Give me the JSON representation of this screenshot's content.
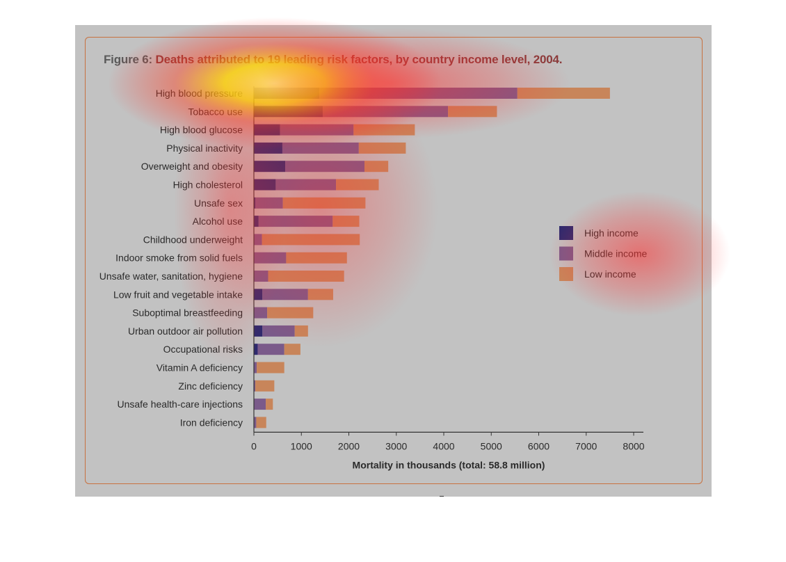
{
  "figure": {
    "number": "Figure 6:",
    "title": "Deaths attributed to 19 leading risk factors, by country income level, 2004."
  },
  "colors": {
    "background": "#c2c2c2",
    "frame": "#c8713f",
    "high_income": "#2e2a6e",
    "middle_income": "#7a5a8a",
    "low_income": "#c8855a"
  },
  "chart_data": {
    "type": "bar",
    "orientation": "horizontal",
    "stacked": true,
    "categories": [
      "High blood pressure",
      "Tobacco use",
      "High blood glucose",
      "Physical inactivity",
      "Overweight and obesity",
      "High cholesterol",
      "Unsafe sex",
      "Alcohol use",
      "Childhood underweight",
      "Indoor smoke from solid fuels",
      "Unsafe water, sanitation, hygiene",
      "Low fruit and vegetable intake",
      "Suboptimal breastfeeding",
      "Urban outdoor air pollution",
      "Occupational risks",
      "Vitamin A deficiency",
      "Zinc deficiency",
      "Unsafe health-care injections",
      "Iron deficiency"
    ],
    "series": [
      {
        "name": "High income",
        "values": [
          1380,
          1450,
          550,
          600,
          660,
          460,
          30,
          100,
          0,
          0,
          0,
          180,
          0,
          180,
          80,
          0,
          0,
          0,
          0
        ]
      },
      {
        "name": "Middle income",
        "values": [
          4170,
          2640,
          1550,
          1610,
          1670,
          1270,
          580,
          1560,
          170,
          680,
          300,
          960,
          280,
          680,
          560,
          60,
          30,
          250,
          50
        ]
      },
      {
        "name": "Low income",
        "values": [
          1950,
          1030,
          1290,
          990,
          500,
          900,
          1740,
          560,
          2060,
          1280,
          1600,
          530,
          970,
          280,
          340,
          580,
          400,
          150,
          210
        ]
      }
    ],
    "xlabel": "Mortality in thousands (total: 58.8 million)",
    "xlim": [
      0,
      8000
    ],
    "xticks": [
      "0",
      "1000",
      "2000",
      "3000",
      "4000",
      "5000",
      "6000",
      "7000",
      "8000"
    ],
    "grid": false,
    "legend_position": "right"
  }
}
